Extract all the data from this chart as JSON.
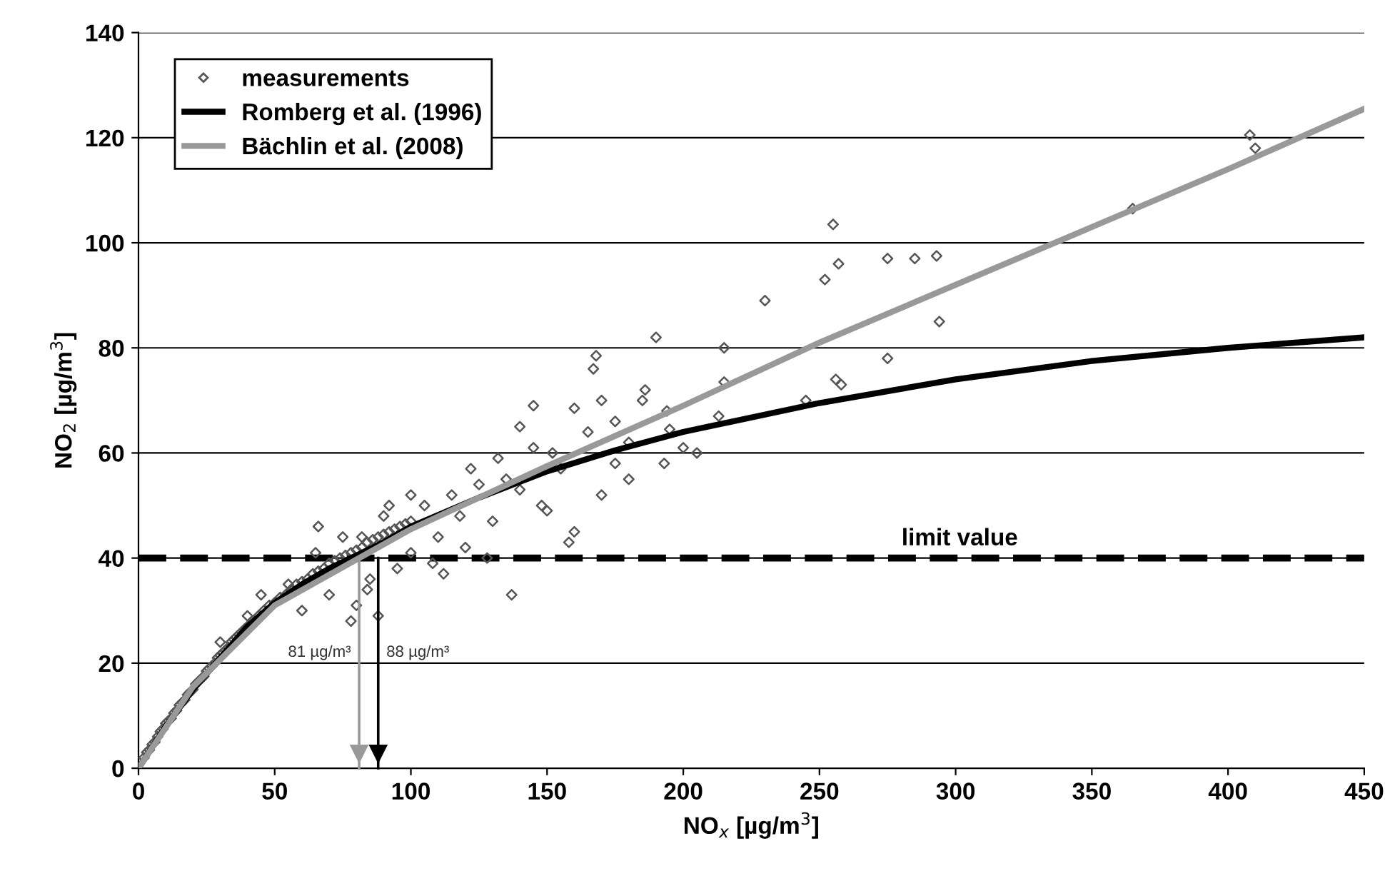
{
  "chart_data": {
    "type": "scatter",
    "xlabel": "NO$_{x}$ [µg/m$^{3}$]",
    "ylabel": "NO$_{2}$ [µg/m$^{3}$]",
    "xlim": [
      0,
      450
    ],
    "xticks": [
      0,
      50,
      100,
      150,
      200,
      250,
      300,
      350,
      400,
      450
    ],
    "ylim": [
      0,
      140
    ],
    "yticks": [
      0,
      20,
      40,
      60,
      80,
      100,
      120,
      140
    ],
    "grid": "y",
    "legend": "top left",
    "marker": "diamond",
    "series": [
      {
        "name": "measurements",
        "color": "#555555",
        "x": [
          2,
          3,
          4,
          5,
          6,
          7,
          8,
          9,
          10,
          11,
          12,
          13,
          14,
          15,
          16,
          17,
          18,
          19,
          20,
          21,
          22,
          23,
          24,
          25,
          26,
          27,
          28,
          29,
          30,
          31,
          32,
          33,
          34,
          35,
          36,
          37,
          38,
          39,
          40,
          42,
          44,
          46,
          48,
          50,
          52,
          54,
          56,
          58,
          60,
          62,
          64,
          66,
          68,
          70,
          72,
          74,
          76,
          78,
          80,
          82,
          84,
          86,
          88,
          90,
          92,
          94,
          96,
          98,
          100,
          30,
          40,
          45,
          55,
          60,
          65,
          70,
          75,
          80,
          85,
          90,
          95,
          100,
          105,
          110,
          115,
          120,
          125,
          130,
          135,
          140,
          145,
          150,
          155,
          160,
          165,
          170,
          175,
          180,
          185,
          66,
          78,
          82,
          84,
          88,
          92,
          100,
          108,
          112,
          118,
          122,
          128,
          132,
          137,
          140,
          145,
          148,
          152,
          158,
          160,
          167,
          168,
          170,
          175,
          180,
          186,
          190,
          193,
          194,
          195,
          200,
          205,
          213,
          215,
          215,
          230,
          245,
          252,
          255,
          256,
          257,
          258,
          275,
          275,
          285,
          293,
          294,
          365,
          408,
          410
        ],
        "values": [
          2,
          3,
          3.5,
          4.5,
          5,
          6,
          7,
          7.5,
          8.5,
          9,
          9.5,
          10.5,
          11,
          12,
          12.5,
          13,
          14,
          14.5,
          15,
          16,
          16.5,
          17,
          17.5,
          18.5,
          19,
          19.5,
          20,
          21,
          21.5,
          22,
          22.5,
          23,
          24,
          24.5,
          25,
          25.5,
          26,
          26.5,
          27,
          28,
          29,
          30,
          31,
          31.5,
          32.5,
          33,
          34,
          35,
          35.5,
          36,
          37,
          37.5,
          38,
          39,
          39.5,
          40,
          40.5,
          41,
          41.5,
          42,
          43,
          43.5,
          44,
          44.5,
          45,
          45.5,
          46,
          46.5,
          47,
          24,
          29,
          33,
          35,
          30,
          41,
          33,
          44,
          31,
          36,
          48,
          38,
          41,
          50,
          44,
          52,
          42,
          54,
          47,
          55,
          53,
          61,
          49,
          57,
          45,
          64,
          52,
          66,
          55,
          70,
          46,
          28,
          44,
          34,
          29,
          50,
          52,
          39,
          37,
          48,
          57,
          40,
          59,
          33,
          65,
          69,
          50,
          60,
          43,
          68.5,
          76,
          78.5,
          70,
          58,
          62,
          72,
          82,
          58,
          68,
          64.5,
          61,
          60,
          67,
          73.5,
          80,
          89,
          70,
          93,
          103.5,
          74,
          96,
          73,
          97,
          78,
          97,
          97.5,
          85,
          106.5,
          120.5,
          118
        ]
      },
      {
        "name": "Romberg et al. (1996)",
        "type": "line",
        "color": "#000000",
        "marker": "none",
        "x": [
          0,
          10,
          20,
          30,
          40,
          50,
          60,
          70,
          80,
          90,
          100,
          125,
          150,
          175,
          200,
          250,
          300,
          350,
          400,
          450
        ],
        "values": [
          0,
          8,
          15,
          21,
          27,
          31.5,
          35,
          38,
          40.5,
          43,
          46,
          51.5,
          56.5,
          60.5,
          64,
          69.5,
          74,
          77.5,
          80,
          82
        ]
      },
      {
        "name": "Bächlin et al. (2008)",
        "type": "line",
        "color": "#999999",
        "marker": "none",
        "x": [
          0,
          20,
          50,
          81,
          100,
          150,
          200,
          250,
          300,
          350,
          400,
          450
        ],
        "values": [
          0,
          15.5,
          31,
          40,
          45.5,
          57.5,
          69,
          81,
          92,
          103,
          114,
          125.5
        ]
      }
    ],
    "ref_lines": [
      {
        "axis": "y",
        "value": 40,
        "label": "limit value",
        "color": "#000000",
        "line_style": "dashed"
      },
      {
        "axis": "x",
        "value": 81,
        "label": "81 µg/m³",
        "color": "#999999",
        "line_style": "solid"
      },
      {
        "axis": "x",
        "value": 88,
        "label": "88 µg/m³",
        "color": "#000000",
        "line_style": "solid"
      }
    ]
  }
}
